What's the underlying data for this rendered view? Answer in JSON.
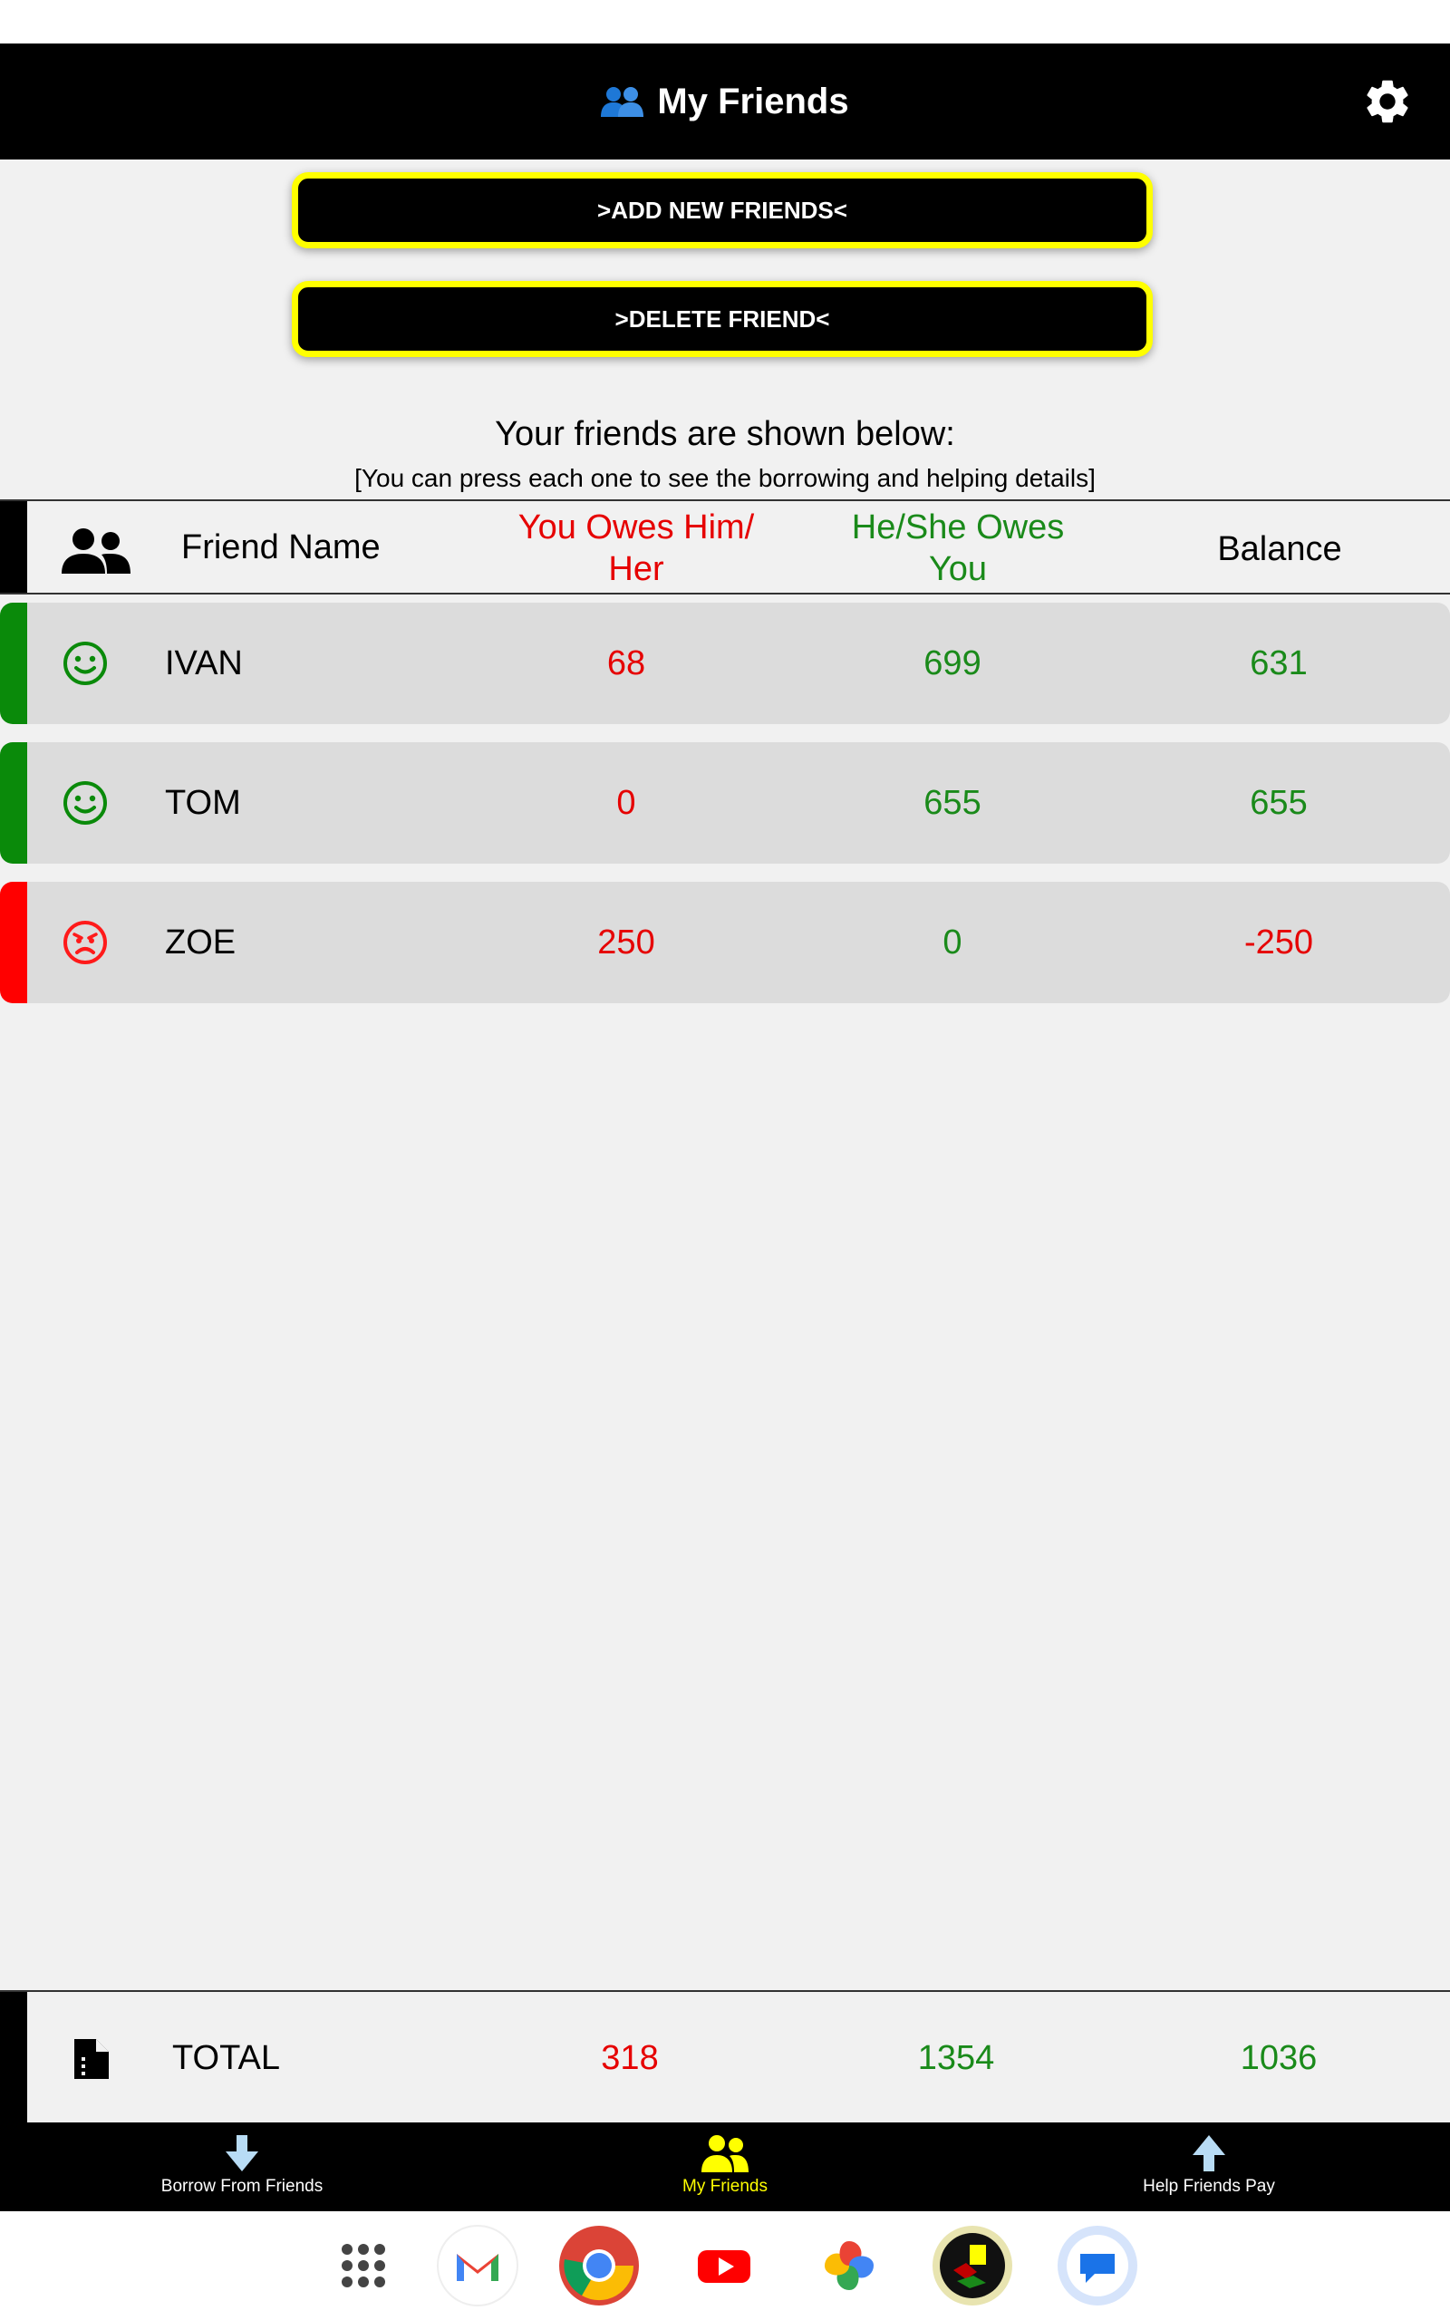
{
  "header": {
    "title": "My Friends"
  },
  "actions": {
    "add_label": ">ADD NEW FRIENDS<",
    "delete_label": ">DELETE FRIEND<"
  },
  "intro": {
    "title": "Your friends are shown below:",
    "subtitle": "[You can press each one to see the borrowing and helping details]"
  },
  "table": {
    "columns": {
      "name": "Friend Name",
      "you_owe": "You Owes Him/ Her",
      "they_owe": "He/She Owes You",
      "balance": "Balance"
    },
    "rows": [
      {
        "name": "IVAN",
        "you_owe": "68",
        "they_owe": "699",
        "balance": "631",
        "mood": "happy",
        "accent": "#0a8a0a"
      },
      {
        "name": "TOM",
        "you_owe": "0",
        "they_owe": "655",
        "balance": "655",
        "mood": "happy",
        "accent": "#0a8a0a"
      },
      {
        "name": "ZOE",
        "you_owe": "250",
        "they_owe": "0",
        "balance": "-250",
        "mood": "angry",
        "accent": "#ff0000"
      }
    ]
  },
  "total": {
    "label": "TOTAL",
    "you_owe": "318",
    "they_owe": "1354",
    "balance": "1036"
  },
  "nav": {
    "borrow_label": "Borrow From Friends",
    "friends_label": "My Friends",
    "help_label": "Help Friends Pay"
  },
  "colors": {
    "owe": "#e60000",
    "owed": "#1a8a1a",
    "button_border": "#ffff00",
    "nav_active": "#ffff00"
  },
  "dock": {
    "apps": [
      "app-drawer-icon",
      "gmail-icon",
      "chrome-icon",
      "youtube-icon",
      "photos-icon",
      "app-logo-icon",
      "messages-icon"
    ]
  }
}
